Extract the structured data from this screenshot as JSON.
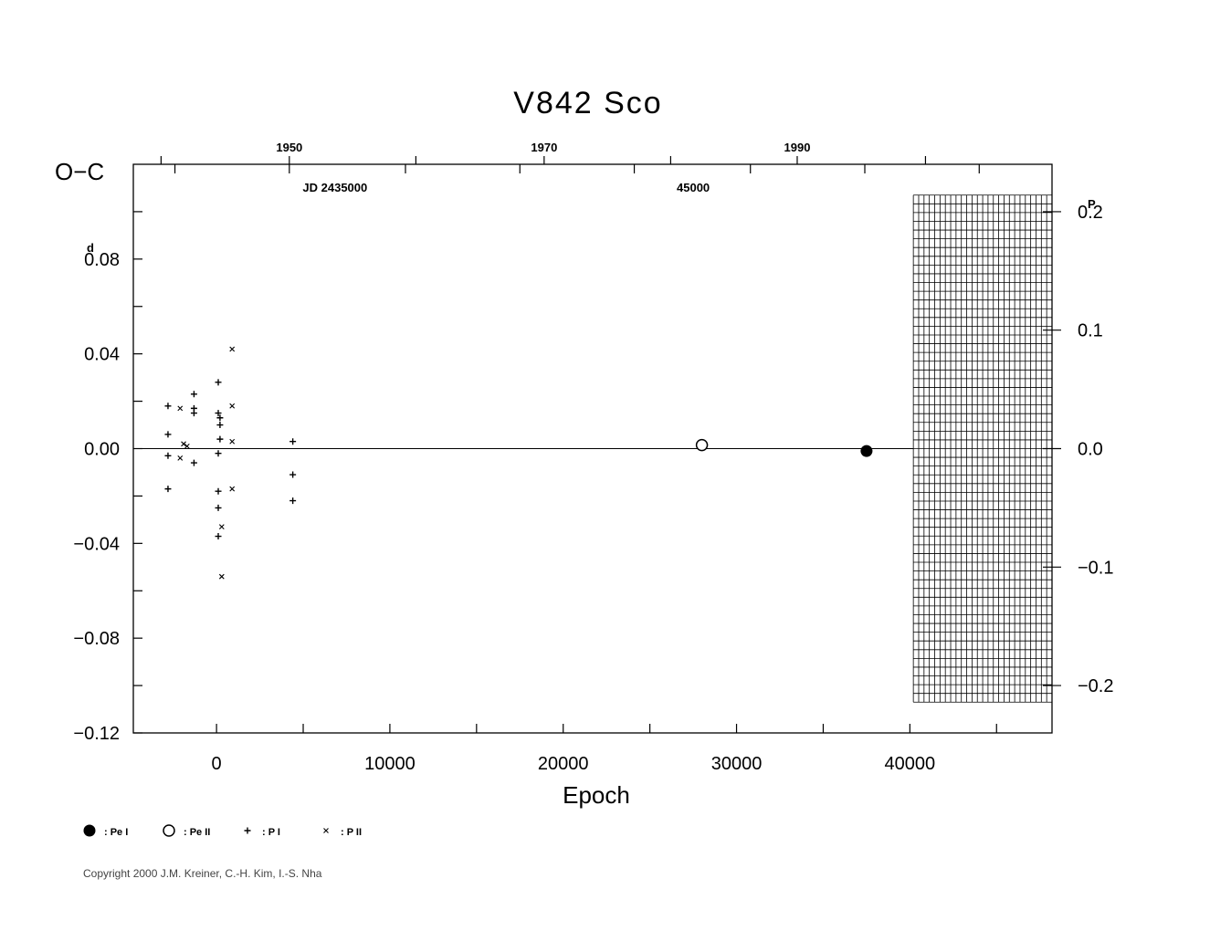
{
  "chart_data": {
    "type": "scatter",
    "title": "V842  Sco",
    "ylabel": "O−C",
    "ylabel_unit_sup": "d",
    "xlabel": "Epoch",
    "xlim": [
      -4800,
      48200
    ],
    "ylim": [
      -0.12,
      0.12
    ],
    "x_ticks": [
      {
        "value": 0,
        "label": "0"
      },
      {
        "value": 10000,
        "label": "10000"
      },
      {
        "value": 20000,
        "label": "20000"
      },
      {
        "value": 30000,
        "label": "30000"
      },
      {
        "value": 40000,
        "label": "40000"
      }
    ],
    "y_ticks": [
      {
        "value": 0.08,
        "label": "0.08"
      },
      {
        "value": 0.04,
        "label": "0.04"
      },
      {
        "value": 0.0,
        "label": "0.00"
      },
      {
        "value": -0.04,
        "label": "−0.04"
      },
      {
        "value": -0.08,
        "label": "−0.08"
      },
      {
        "value": -0.12,
        "label": "−0.12"
      }
    ],
    "top_axis": {
      "year_ticks": [
        {
          "epoch": 4200,
          "label": "1950"
        },
        {
          "epoch": 18900,
          "label": "1970"
        },
        {
          "epoch": 33500,
          "label": "1990"
        }
      ],
      "jd_labels": [
        {
          "epoch": 4200,
          "label": "JD  2435000"
        },
        {
          "epoch": 27500,
          "label": "45000"
        }
      ]
    },
    "right_axis": {
      "unit_sup": "P",
      "ticks": [
        {
          "value": 0.1,
          "label": "0.2"
        },
        {
          "value": 0.05,
          "label": "0.1"
        },
        {
          "value": 0.0,
          "label": "0.0"
        },
        {
          "value": -0.05,
          "label": "−0.1"
        },
        {
          "value": -0.1,
          "label": "−0.2"
        }
      ]
    },
    "hatched_region": {
      "x_from": 40200,
      "x_to": 48200,
      "y_from": -0.107,
      "y_to": 0.107
    },
    "series": [
      {
        "name": ": Pe I",
        "marker": "filled-circle",
        "points": [
          [
            37500,
            -0.001
          ]
        ]
      },
      {
        "name": ": Pe II",
        "marker": "open-circle",
        "points": [
          [
            28000,
            0.0015
          ]
        ]
      },
      {
        "name": ": P I",
        "marker": "plus",
        "points": [
          [
            -2800,
            0.018
          ],
          [
            -2800,
            0.006
          ],
          [
            -2800,
            -0.003
          ],
          [
            -2800,
            -0.017
          ],
          [
            -1300,
            0.023
          ],
          [
            -1300,
            0.017
          ],
          [
            -1300,
            0.015
          ],
          [
            -1300,
            -0.006
          ],
          [
            100,
            0.028
          ],
          [
            100,
            0.015
          ],
          [
            200,
            0.013
          ],
          [
            200,
            0.01
          ],
          [
            200,
            0.004
          ],
          [
            100,
            -0.002
          ],
          [
            100,
            -0.018
          ],
          [
            100,
            -0.025
          ],
          [
            100,
            -0.037
          ],
          [
            4400,
            0.003
          ],
          [
            4400,
            -0.011
          ],
          [
            4400,
            -0.022
          ]
        ]
      },
      {
        "name": ": P II",
        "marker": "cross",
        "points": [
          [
            -2100,
            0.017
          ],
          [
            -2100,
            -0.004
          ],
          [
            -1900,
            0.002
          ],
          [
            -1700,
            0.001
          ],
          [
            900,
            0.042
          ],
          [
            900,
            0.018
          ],
          [
            900,
            0.003
          ],
          [
            900,
            -0.017
          ],
          [
            300,
            -0.033
          ],
          [
            300,
            -0.054
          ]
        ]
      }
    ]
  },
  "copyright": "Copyright 2000 J.M. Kreiner, C.-H. Kim, I.-S. Nha"
}
